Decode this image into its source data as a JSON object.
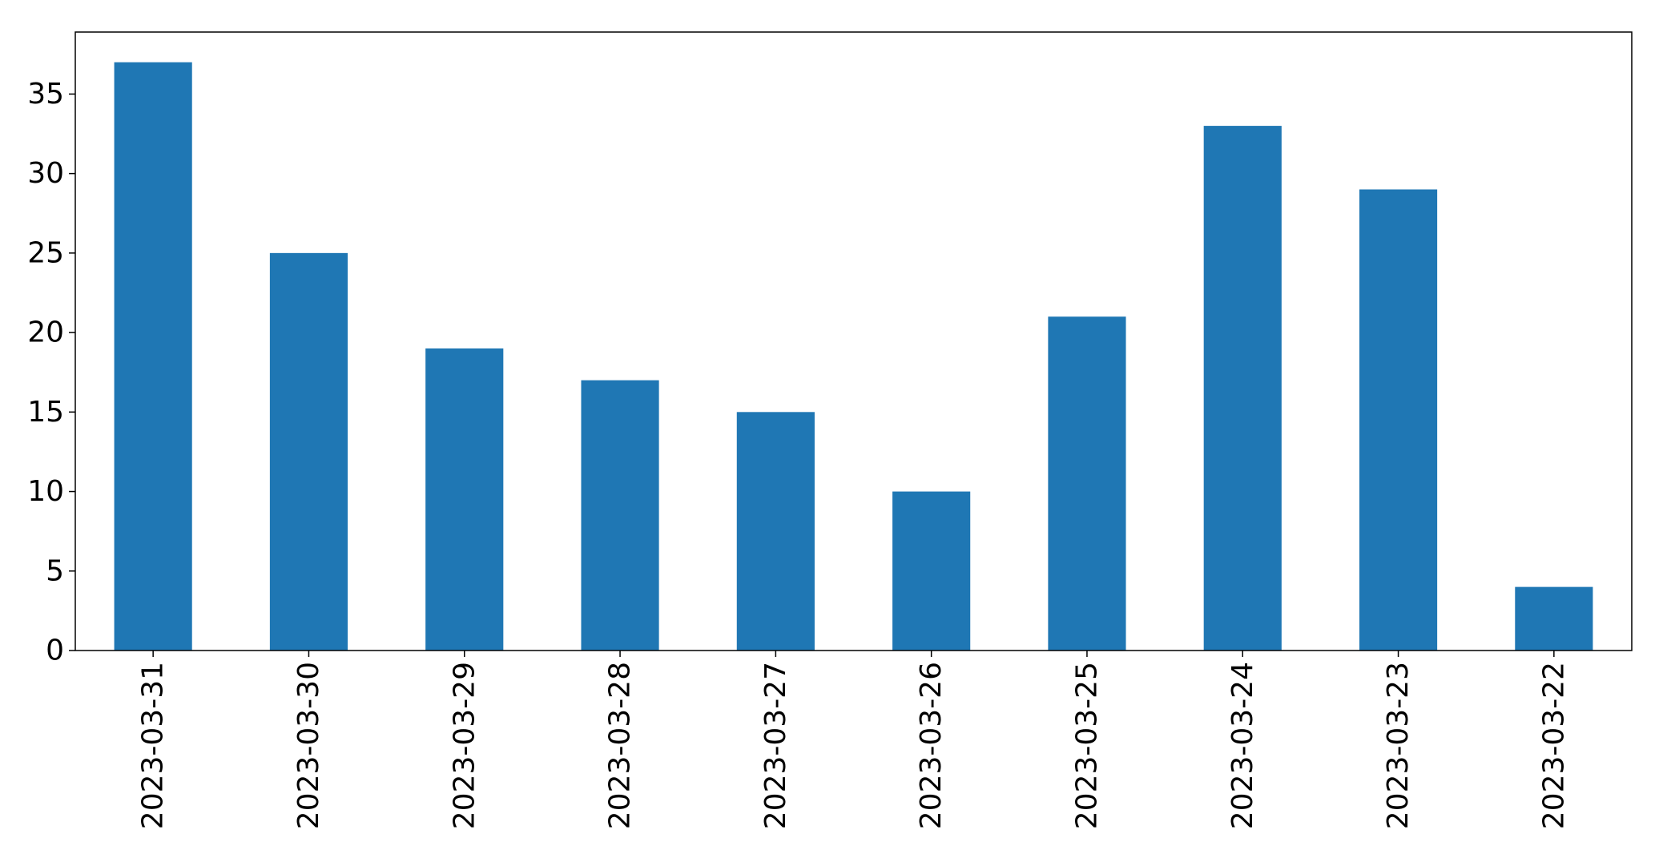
{
  "chart_data": {
    "type": "bar",
    "title": "",
    "xlabel": "",
    "ylabel": "",
    "categories": [
      "2023-03-31",
      "2023-03-30",
      "2023-03-29",
      "2023-03-28",
      "2023-03-27",
      "2023-03-26",
      "2023-03-25",
      "2023-03-24",
      "2023-03-23",
      "2023-03-22"
    ],
    "values": [
      37,
      25,
      19,
      17,
      15,
      10,
      21,
      33,
      29,
      4
    ],
    "ylim": [
      0,
      38.9
    ],
    "yticks": [
      0,
      5,
      10,
      15,
      20,
      25,
      30,
      35
    ],
    "bar_color": "#1f77b4",
    "grid": false,
    "legend": "none"
  }
}
